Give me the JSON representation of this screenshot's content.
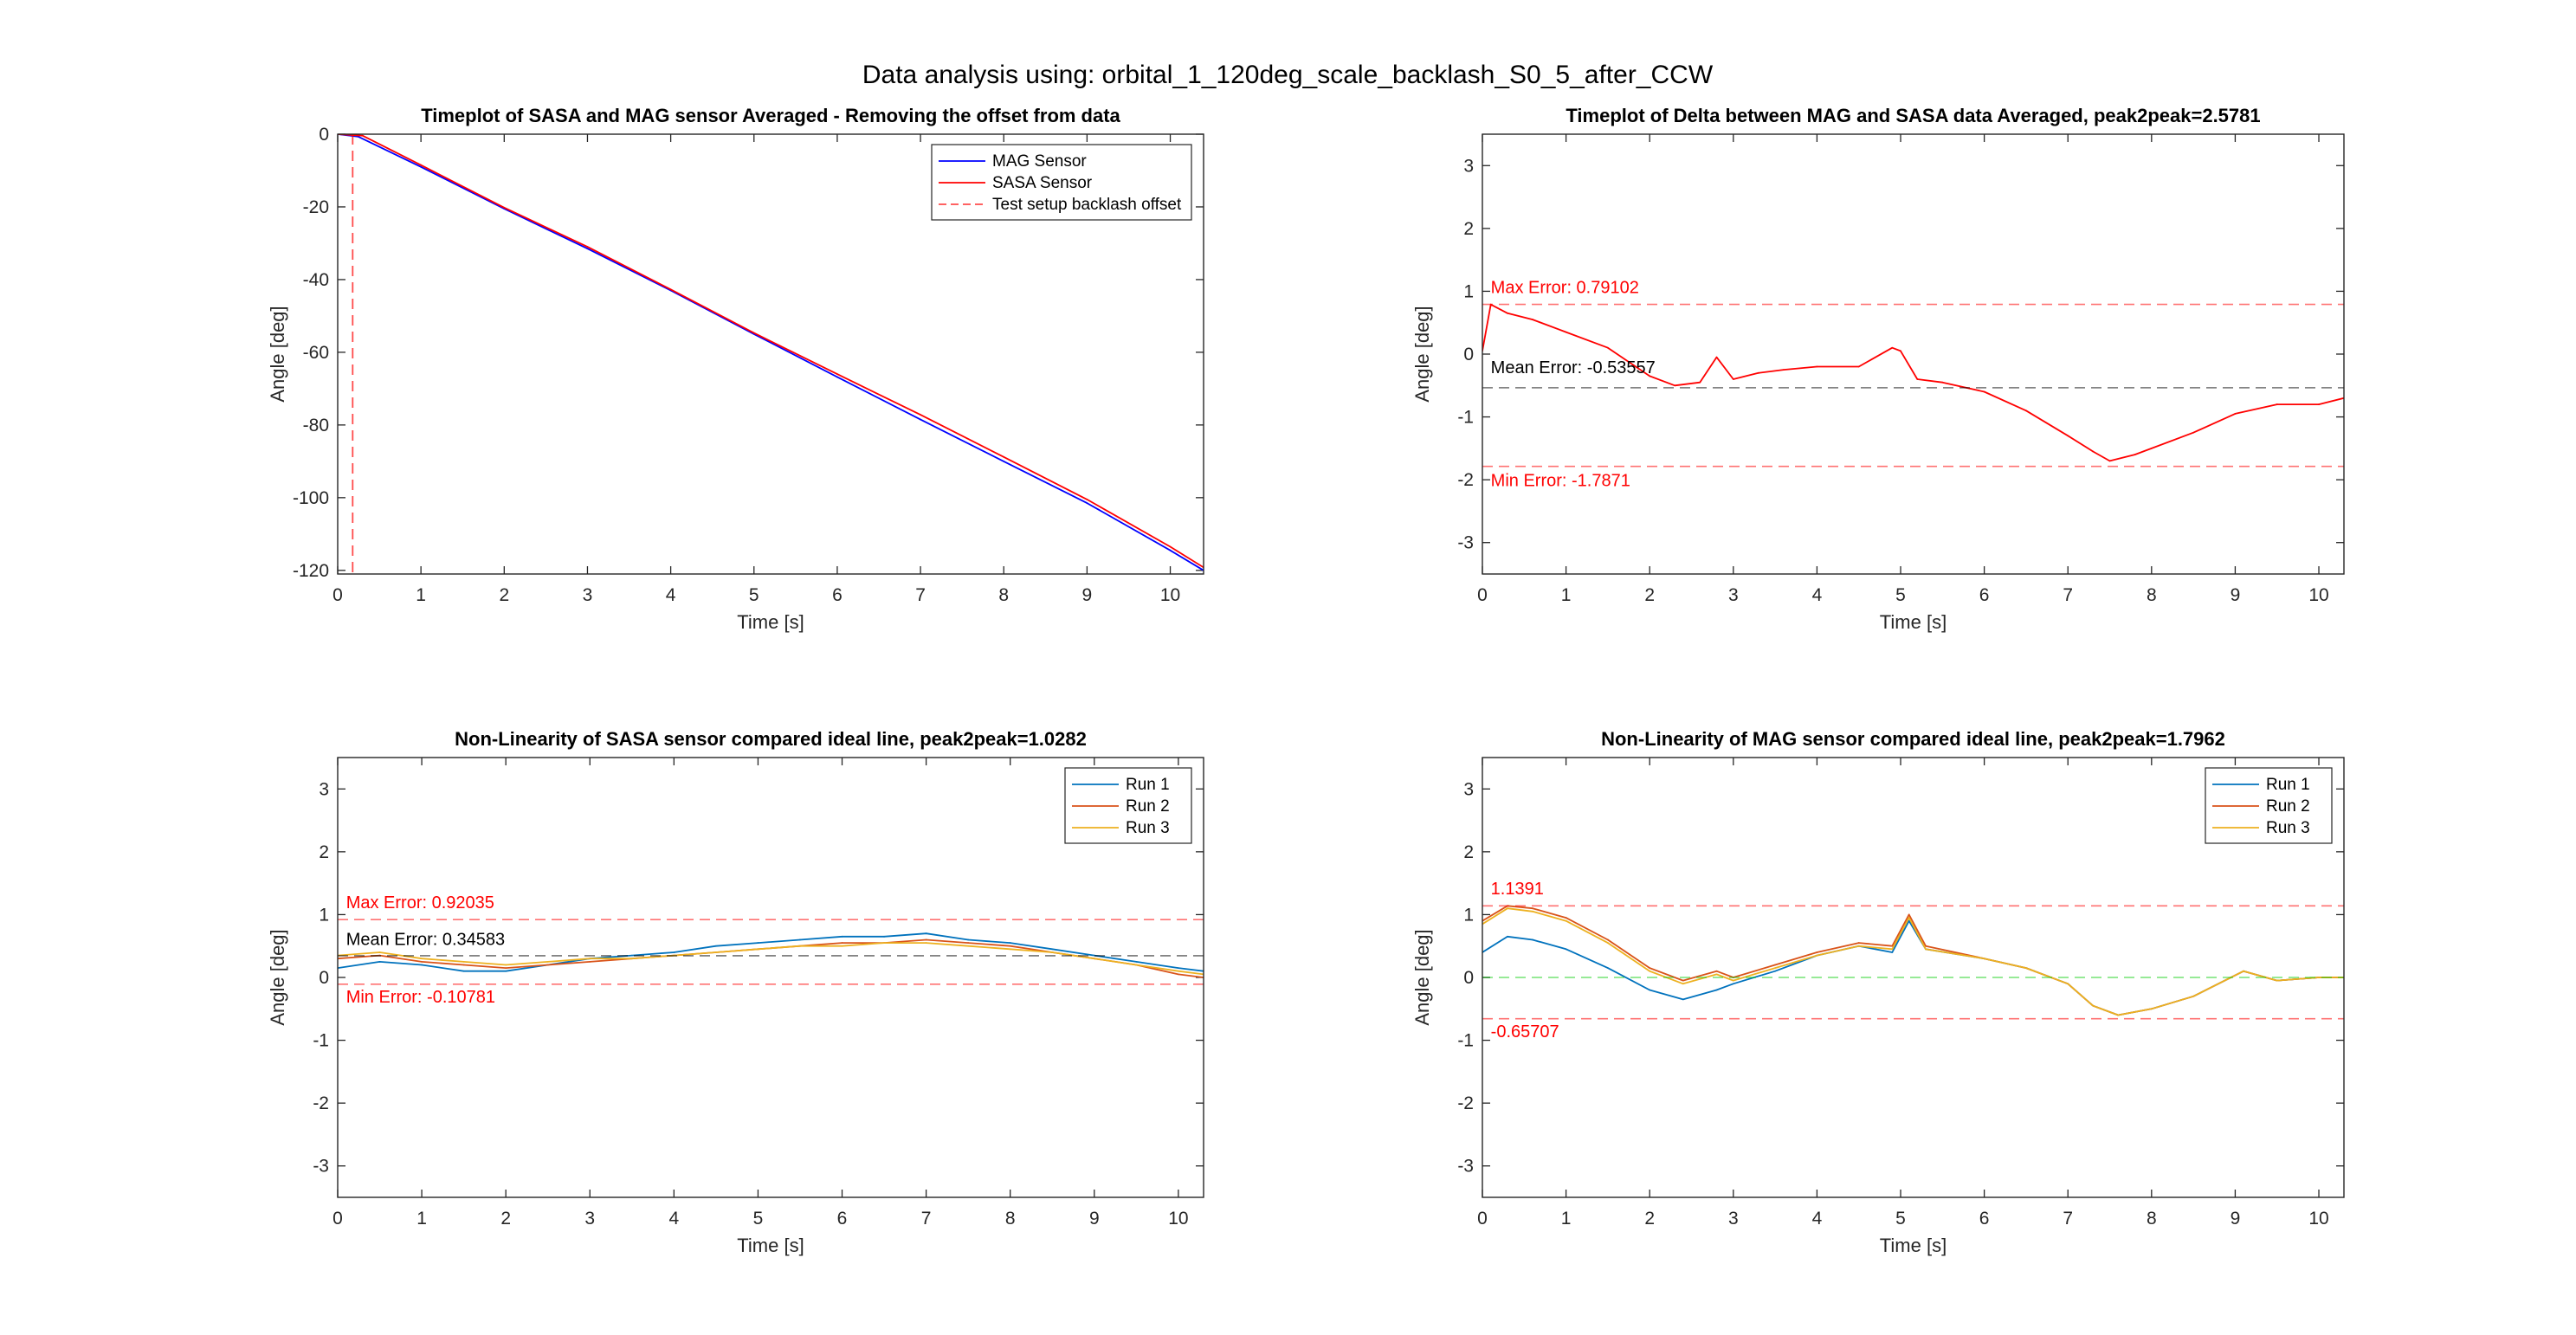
{
  "figure": {
    "title": "Data analysis using: orbital_1_120deg_scale_backlash_S0_5_after_CCW"
  },
  "chart_data": [
    {
      "type": "line",
      "title": "Timeplot of SASA and MAG sensor Averaged - Removing the offset from data",
      "xlabel": "Time [s]",
      "ylabel": "Angle [deg]",
      "xlim": [
        0,
        10.4
      ],
      "ylim": [
        -121,
        0
      ],
      "xticks": [
        0,
        1,
        2,
        3,
        4,
        5,
        6,
        7,
        8,
        9,
        10
      ],
      "yticks": [
        0,
        -20,
        -40,
        -60,
        -80,
        -100,
        -120
      ],
      "legend": "top-right",
      "series": [
        {
          "name": "MAG Sensor",
          "color": "#0000ff",
          "x": [
            0,
            0.25,
            1,
            2,
            3,
            4,
            5,
            6,
            7,
            8,
            9,
            10,
            10.4
          ],
          "y": [
            0,
            -0.7,
            -9,
            -20.5,
            -31.5,
            -43,
            -55,
            -66.8,
            -78.5,
            -90,
            -101.5,
            -114.5,
            -120
          ]
        },
        {
          "name": "SASA Sensor",
          "color": "#ff0000",
          "x": [
            0,
            0.3,
            1,
            2,
            3,
            4,
            5,
            6,
            7,
            8,
            9,
            10,
            10.4
          ],
          "y": [
            0,
            -0.4,
            -8.5,
            -20.2,
            -31,
            -42.7,
            -54.7,
            -66,
            -77.2,
            -88.8,
            -100.5,
            -113.5,
            -119.2
          ]
        },
        {
          "name": "Test setup backlash offset",
          "color": "#ff0000",
          "style": "dashed",
          "orientation": "vertical",
          "x_value": 0.18
        }
      ]
    },
    {
      "type": "line",
      "title": "Timeplot of Delta between MAG and SASA data Averaged, peak2peak=2.5781",
      "xlabel": "Time [s]",
      "ylabel": "Angle [deg]",
      "xlim": [
        0,
        10.3
      ],
      "ylim": [
        -3.5,
        3.5
      ],
      "xticks": [
        0,
        1,
        2,
        3,
        4,
        5,
        6,
        7,
        8,
        9,
        10
      ],
      "yticks": [
        -3,
        -2,
        -1,
        0,
        1,
        2,
        3
      ],
      "series": [
        {
          "name": "Delta",
          "color": "#ff0000",
          "x": [
            0,
            0.1,
            0.3,
            0.6,
            1,
            1.5,
            2,
            2.3,
            2.6,
            2.8,
            3,
            3.3,
            3.6,
            4,
            4.5,
            4.9,
            5,
            5.2,
            5.5,
            6,
            6.5,
            7,
            7.3,
            7.5,
            7.8,
            8,
            8.5,
            9,
            9.5,
            10,
            10.3
          ],
          "y": [
            0.05,
            0.79,
            0.65,
            0.55,
            0.35,
            0.1,
            -0.35,
            -0.5,
            -0.45,
            -0.05,
            -0.4,
            -0.3,
            -0.25,
            -0.2,
            -0.2,
            0.1,
            0.05,
            -0.4,
            -0.45,
            -0.6,
            -0.9,
            -1.3,
            -1.55,
            -1.7,
            -1.6,
            -1.5,
            -1.25,
            -0.95,
            -0.8,
            -0.8,
            -0.7
          ]
        },
        {
          "name": "Max Error",
          "color": "#ff0000",
          "style": "dashed",
          "orientation": "horizontal",
          "value": 0.79102
        },
        {
          "name": "Mean Error",
          "color": "#000000",
          "style": "dashed",
          "orientation": "horizontal",
          "value": -0.53557
        },
        {
          "name": "Min Error",
          "color": "#ff0000",
          "style": "dashed",
          "orientation": "horizontal",
          "value": -1.7871
        }
      ],
      "annotations": [
        {
          "text": "Max Error: 0.79102",
          "x": 0.1,
          "y": 0.97,
          "color": "#ff0000"
        },
        {
          "text": "Mean Error: -0.53557",
          "x": 0.1,
          "y": -0.3,
          "color": "#000000"
        },
        {
          "text": "Min Error: -1.7871",
          "x": 0.1,
          "y": -2.1,
          "color": "#ff0000"
        }
      ]
    },
    {
      "type": "line",
      "title": "Non-Linearity of SASA sensor compared ideal line, peak2peak=1.0282",
      "xlabel": "Time [s]",
      "ylabel": "Angle [deg]",
      "xlim": [
        0,
        10.3
      ],
      "ylim": [
        -3.5,
        3.5
      ],
      "xticks": [
        0,
        1,
        2,
        3,
        4,
        5,
        6,
        7,
        8,
        9,
        10
      ],
      "yticks": [
        -3,
        -2,
        -1,
        0,
        1,
        2,
        3
      ],
      "legend": "top-right",
      "series": [
        {
          "name": "Run 1",
          "color": "#0072bd",
          "x": [
            0,
            0.5,
            1,
            1.5,
            2,
            2.5,
            3,
            3.5,
            4,
            4.5,
            5,
            5.5,
            6,
            6.5,
            7,
            7.5,
            8,
            8.5,
            9,
            9.5,
            10,
            10.3
          ],
          "y": [
            0.15,
            0.25,
            0.2,
            0.1,
            0.1,
            0.2,
            0.3,
            0.35,
            0.4,
            0.5,
            0.55,
            0.6,
            0.65,
            0.65,
            0.7,
            0.6,
            0.55,
            0.45,
            0.35,
            0.25,
            0.15,
            0.1
          ]
        },
        {
          "name": "Run 2",
          "color": "#d95319",
          "x": [
            0,
            0.5,
            1,
            1.5,
            2,
            2.5,
            3,
            3.5,
            4,
            4.5,
            5,
            5.5,
            6,
            6.5,
            7,
            7.5,
            8,
            8.5,
            9,
            9.5,
            10,
            10.3
          ],
          "y": [
            0.3,
            0.35,
            0.25,
            0.2,
            0.15,
            0.2,
            0.25,
            0.3,
            0.35,
            0.4,
            0.45,
            0.5,
            0.55,
            0.55,
            0.6,
            0.55,
            0.5,
            0.4,
            0.3,
            0.2,
            0.05,
            0.0
          ]
        },
        {
          "name": "Run 3",
          "color": "#edb120",
          "x": [
            0,
            0.5,
            1,
            1.5,
            2,
            2.5,
            3,
            3.5,
            4,
            4.5,
            5,
            5.5,
            6,
            6.5,
            7,
            7.5,
            8,
            8.5,
            9,
            9.5,
            10,
            10.3
          ],
          "y": [
            0.35,
            0.4,
            0.3,
            0.25,
            0.2,
            0.25,
            0.3,
            0.3,
            0.35,
            0.4,
            0.45,
            0.5,
            0.5,
            0.55,
            0.55,
            0.5,
            0.45,
            0.4,
            0.3,
            0.2,
            0.1,
            0.05
          ]
        },
        {
          "name": "Max Error",
          "color": "#ff0000",
          "style": "dashed",
          "orientation": "horizontal",
          "value": 0.92035
        },
        {
          "name": "Mean Error",
          "color": "#000000",
          "style": "dashed",
          "orientation": "horizontal",
          "value": 0.34583
        },
        {
          "name": "Min Error",
          "color": "#ff0000",
          "style": "dashed",
          "orientation": "horizontal",
          "value": -0.10781
        }
      ],
      "annotations": [
        {
          "text": "Max Error: 0.92035",
          "x": 0.1,
          "y": 1.1,
          "color": "#ff0000"
        },
        {
          "text": "Mean Error: 0.34583",
          "x": 0.1,
          "y": 0.52,
          "color": "#000000"
        },
        {
          "text": "Min Error: -0.10781",
          "x": 0.1,
          "y": -0.4,
          "color": "#ff0000"
        }
      ]
    },
    {
      "type": "line",
      "title": "Non-Linearity of MAG sensor compared ideal line, peak2peak=1.7962",
      "xlabel": "Time [s]",
      "ylabel": "Angle [deg]",
      "xlim": [
        0,
        10.3
      ],
      "ylim": [
        -3.5,
        3.5
      ],
      "xticks": [
        0,
        1,
        2,
        3,
        4,
        5,
        6,
        7,
        8,
        9,
        10
      ],
      "yticks": [
        -3,
        -2,
        -1,
        0,
        1,
        2,
        3
      ],
      "legend": "top-right",
      "series": [
        {
          "name": "Run 1",
          "color": "#0072bd",
          "x": [
            0,
            0.3,
            0.6,
            1,
            1.5,
            2,
            2.4,
            2.8,
            3,
            3.5,
            4,
            4.5,
            4.9,
            5.1,
            5.3,
            6,
            6.5,
            7,
            7.3,
            7.6,
            8,
            8.5,
            9.1,
            9.5,
            10,
            10.3
          ],
          "y": [
            0.4,
            0.65,
            0.6,
            0.45,
            0.15,
            -0.2,
            -0.35,
            -0.2,
            -0.1,
            0.1,
            0.35,
            0.5,
            0.4,
            0.9,
            0.45,
            0.3,
            0.15,
            -0.1,
            -0.45,
            -0.6,
            -0.5,
            -0.3,
            0.1,
            -0.05,
            0.0,
            0.0
          ]
        },
        {
          "name": "Run 2",
          "color": "#d95319",
          "x": [
            0,
            0.3,
            0.6,
            1,
            1.5,
            2,
            2.4,
            2.8,
            3,
            3.5,
            4,
            4.5,
            4.9,
            5.1,
            5.3,
            6,
            6.5,
            7,
            7.3,
            7.6,
            8,
            8.5,
            9.1,
            9.5,
            10,
            10.3
          ],
          "y": [
            0.9,
            1.14,
            1.1,
            0.95,
            0.6,
            0.15,
            -0.05,
            0.1,
            0.0,
            0.2,
            0.4,
            0.55,
            0.5,
            1.0,
            0.5,
            0.3,
            0.15,
            -0.1,
            -0.45,
            -0.6,
            -0.5,
            -0.3,
            0.1,
            -0.05,
            0.0,
            0.0
          ]
        },
        {
          "name": "Run 3",
          "color": "#edb120",
          "x": [
            0,
            0.3,
            0.6,
            1,
            1.5,
            2,
            2.4,
            2.8,
            3,
            3.5,
            4,
            4.5,
            4.9,
            5.1,
            5.3,
            6,
            6.5,
            7,
            7.3,
            7.6,
            8,
            8.5,
            9.1,
            9.5,
            10,
            10.3
          ],
          "y": [
            0.85,
            1.1,
            1.05,
            0.9,
            0.55,
            0.1,
            -0.1,
            0.05,
            -0.05,
            0.15,
            0.35,
            0.5,
            0.45,
            0.95,
            0.45,
            0.3,
            0.15,
            -0.1,
            -0.45,
            -0.6,
            -0.5,
            -0.3,
            0.1,
            -0.05,
            0.0,
            0.0
          ]
        },
        {
          "name": "Max Error",
          "color": "#ff0000",
          "style": "dashed",
          "orientation": "horizontal",
          "value": 1.1391
        },
        {
          "name": "Zero line",
          "color": "#00cc00",
          "style": "dashed",
          "orientation": "horizontal",
          "value": 0
        },
        {
          "name": "Min Error",
          "color": "#ff0000",
          "style": "dashed",
          "orientation": "horizontal",
          "value": -0.65707
        }
      ],
      "annotations": [
        {
          "text": "1.1391",
          "x": 0.1,
          "y": 1.32,
          "color": "#ff0000"
        },
        {
          "text": "-0.65707",
          "x": 0.1,
          "y": -0.95,
          "color": "#ff0000"
        }
      ]
    }
  ]
}
